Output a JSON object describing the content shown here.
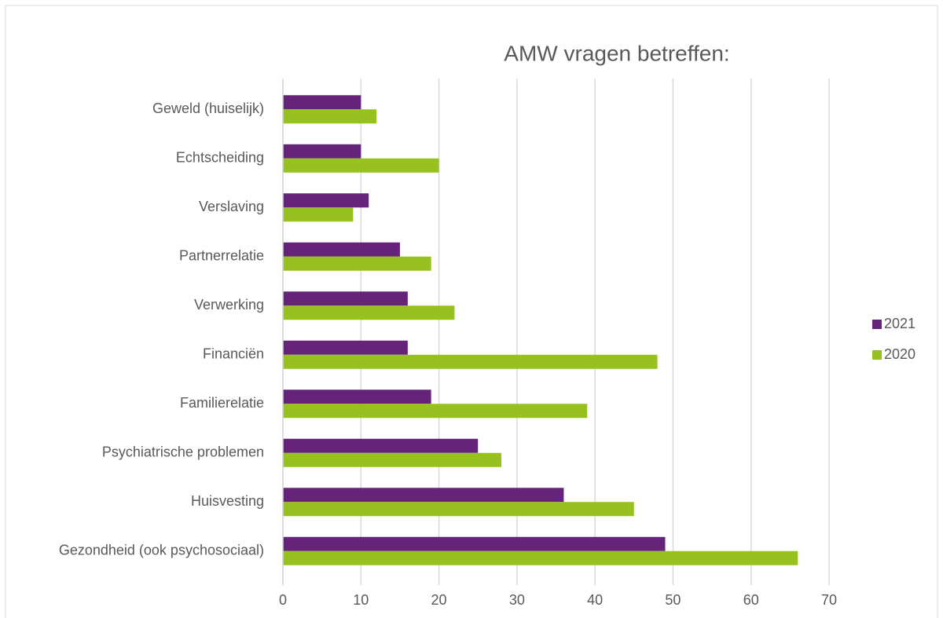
{
  "chart_data": {
    "type": "hbar",
    "title": "AMW vragen betreffen:",
    "categories": [
      "Geweld (huiselijk)",
      "Echtscheiding",
      "Verslaving",
      "Partnerrelatie",
      "Verwerking",
      "Financiën",
      "Familierelatie",
      "Psychiatrische problemen",
      "Huisvesting",
      "Gezondheid (ook psychosociaal)"
    ],
    "series": [
      {
        "name": "2021",
        "color": "#652479",
        "values": [
          10,
          10,
          11,
          15,
          16,
          16,
          19,
          25,
          36,
          49
        ]
      },
      {
        "name": "2020",
        "color": "#97c11f",
        "values": [
          12,
          20,
          9,
          19,
          22,
          48,
          39,
          28,
          45,
          66
        ]
      }
    ],
    "xlim": [
      0,
      70
    ],
    "xticks": [
      0,
      10,
      20,
      30,
      40,
      50,
      60,
      70
    ],
    "grid": true,
    "legend": "right"
  }
}
